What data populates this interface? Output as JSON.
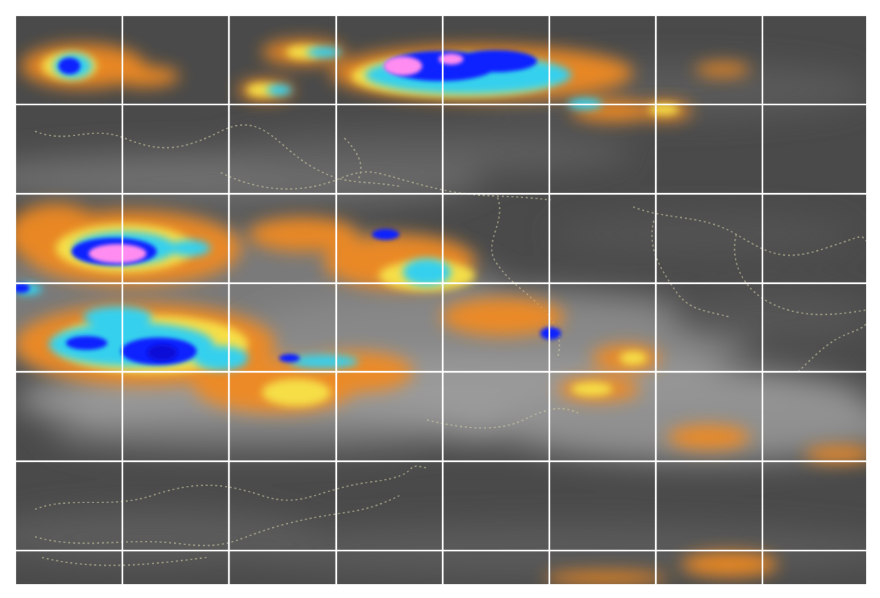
{
  "map": {
    "type": "satellite-infrared-enhanced",
    "colorscale": [
      "#888888",
      "#f08a24",
      "#f7e34a",
      "#35d0ee",
      "#1020ff",
      "#0a08d8",
      "#ff8cf0"
    ],
    "background_color": "#4a4a4a",
    "graticule_color": "#ffffff",
    "border_color": "#d8d2a8",
    "graticule": {
      "columns": 8,
      "rows": 7
    }
  }
}
